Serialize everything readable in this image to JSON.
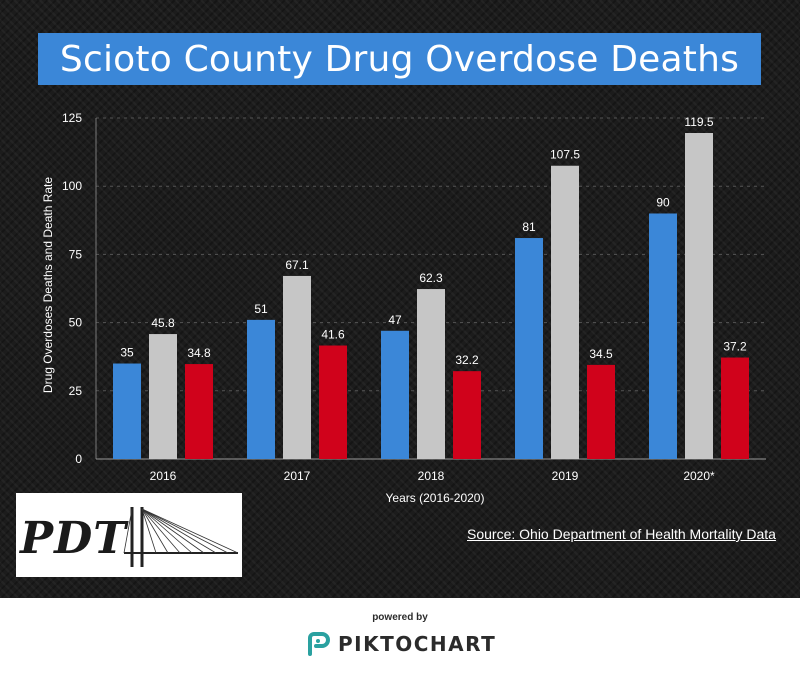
{
  "title": "Scioto County Drug Overdose Deaths",
  "chart_data": {
    "type": "bar",
    "categories": [
      "2016",
      "2017",
      "2018",
      "2019",
      "2020*"
    ],
    "series": [
      {
        "values": [
          35,
          51,
          47,
          81,
          90
        ],
        "labels": [
          "35",
          "51",
          "47",
          "81",
          "90"
        ],
        "color": "#3b87d8"
      },
      {
        "values": [
          45.8,
          67.1,
          62.3,
          107.5,
          119.5
        ],
        "labels": [
          "45.8",
          "67.1",
          "62.3",
          "107.5",
          "119.5"
        ],
        "color": "#c6c6c6"
      },
      {
        "values": [
          34.8,
          41.6,
          32.2,
          34.5,
          37.2
        ],
        "labels": [
          "34.8",
          "41.6",
          "32.2",
          "34.5",
          "37.2"
        ],
        "color": "#d0021b"
      }
    ],
    "xlabel": "Years (2016-2020)",
    "ylabel": "Drug Overdoses Deaths and Death Rate",
    "ylim": [
      0,
      125
    ],
    "yticks": [
      0,
      25,
      50,
      75,
      100,
      125
    ],
    "grid": true
  },
  "logo_text": "PDT",
  "source": "Source: Ohio Department of Health Mortality Data",
  "footer": {
    "powered_by": "powered by",
    "brand": "PIKTOCHART",
    "brand_color": "#2aa1a0"
  }
}
